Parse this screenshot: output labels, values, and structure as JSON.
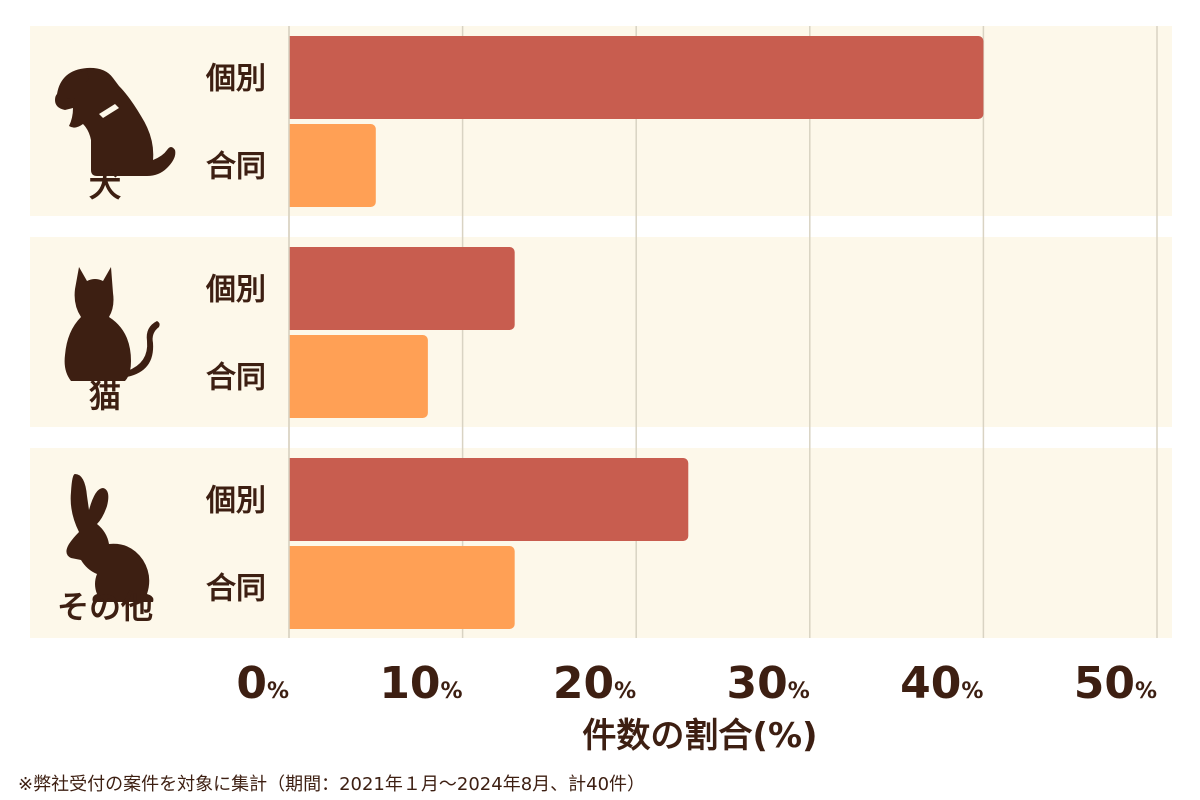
{
  "chart_data": {
    "type": "bar",
    "orientation": "horizontal",
    "groups": [
      {
        "label": "犬",
        "icon": "dog-icon",
        "bars": [
          {
            "label": "個別",
            "value": 40
          },
          {
            "label": "合同",
            "value": 5
          }
        ]
      },
      {
        "label": "猫",
        "icon": "cat-icon",
        "bars": [
          {
            "label": "個別",
            "value": 13
          },
          {
            "label": "合同",
            "value": 8
          }
        ]
      },
      {
        "label": "その他",
        "icon": "rabbit-icon",
        "bars": [
          {
            "label": "個別",
            "value": 23
          },
          {
            "label": "合同",
            "value": 13
          }
        ]
      }
    ],
    "xlim": [
      0,
      50
    ],
    "xticks": [
      {
        "value": 0,
        "number": "0",
        "unit": "%"
      },
      {
        "value": 10,
        "number": "10",
        "unit": "%"
      },
      {
        "value": 20,
        "number": "20",
        "unit": "%"
      },
      {
        "value": 30,
        "number": "30",
        "unit": "%"
      },
      {
        "value": 40,
        "number": "40",
        "unit": "%"
      },
      {
        "value": 50,
        "number": "50",
        "unit": "%"
      }
    ],
    "xlabel": "件数の割合(%)",
    "grid": true,
    "legend": "none"
  },
  "footnote": "※弊社受付の案件を対象に集計（期間：2021年１月～2024年8月、計40件）",
  "colors": {
    "individual_bar": "#c85d4f",
    "joint_bar": "#ffa055",
    "band_background": "#fdf8ea",
    "grid": "#d9d3c3",
    "text": "#3d1f12"
  }
}
